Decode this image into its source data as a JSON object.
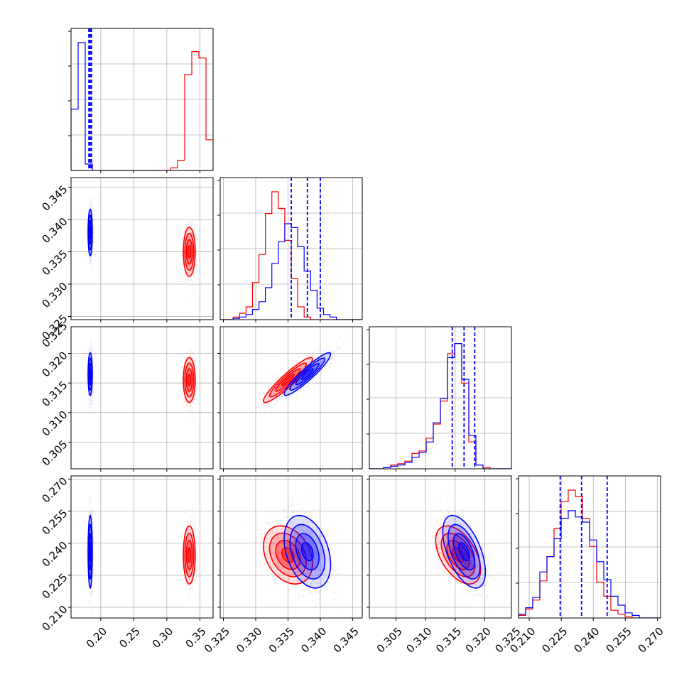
{
  "chart_data": {
    "type": "corner",
    "colors": {
      "series_a": "#0000ff",
      "series_b": "#ff0000"
    },
    "grid": true,
    "series": [
      {
        "color": "blue",
        "means": [
          0.184,
          0.338,
          0.3165,
          0.236
        ],
        "sds": [
          0.0016,
          0.0018,
          0.0018,
          0.0085
        ],
        "quantile_lines": [
          [
            0.182,
            0.184,
            0.186
          ],
          [
            0.3355,
            0.338,
            0.34
          ],
          [
            0.3145,
            0.3165,
            0.3183
          ],
          [
            0.2245,
            0.2345,
            0.2465
          ]
        ]
      },
      {
        "color": "red",
        "means": [
          0.334,
          0.335,
          0.3155,
          0.2345
        ],
        "sds": [
          0.0045,
          0.0019,
          0.0019,
          0.0068
        ],
        "quantile_lines": null
      }
    ],
    "axes": [
      {
        "range": [
          0.155,
          0.37
        ],
        "ticks": [
          0.2,
          0.25,
          0.3,
          0.35
        ],
        "tick_labels": [
          "0.20",
          "0.25",
          "0.30",
          "0.35"
        ]
      },
      {
        "range": [
          0.3245,
          0.3465
        ],
        "ticks": [
          0.325,
          0.33,
          0.335,
          0.34,
          0.345
        ],
        "tick_labels": [
          "0.325",
          "0.330",
          "0.335",
          "0.340",
          "0.345"
        ]
      },
      {
        "range": [
          0.3005,
          0.3245
        ],
        "ticks": [
          0.305,
          0.31,
          0.315,
          0.32,
          0.325
        ],
        "tick_labels": [
          "0.305",
          "0.310",
          "0.315",
          "0.320",
          "0.325"
        ]
      },
      {
        "range": [
          0.205,
          0.2715
        ],
        "ticks": [
          0.21,
          0.225,
          0.24,
          0.255,
          0.27
        ],
        "tick_labels": [
          "0.210",
          "0.225",
          "0.240",
          "0.255",
          "0.270"
        ]
      }
    ],
    "histograms": [
      {
        "bins": [
          0.155,
          0.37,
          20
        ],
        "blue": [
          0.48,
          1.0,
          0.05,
          0,
          0,
          0,
          0,
          0,
          0,
          0,
          0,
          0,
          0,
          0,
          0,
          0,
          0,
          0,
          0,
          0
        ],
        "red": [
          0,
          0,
          0,
          0,
          0,
          0,
          0,
          0,
          0,
          0,
          0,
          0,
          0,
          0,
          0.02,
          0.08,
          0.75,
          0.93,
          0.88,
          0.24
        ]
      },
      {
        "bins": [
          0.3245,
          0.3465,
          22
        ],
        "blue": [
          0.0,
          0.0,
          0.01,
          0.02,
          0.04,
          0.08,
          0.14,
          0.25,
          0.44,
          0.61,
          0.75,
          0.72,
          0.57,
          0.38,
          0.23,
          0.09,
          0.04,
          0.02,
          0.0,
          0.0,
          0.0,
          0.0
        ],
        "red": [
          0.0,
          0.0,
          0.02,
          0.05,
          0.1,
          0.29,
          0.51,
          0.83,
          1.0,
          0.87,
          0.62,
          0.32,
          0.1,
          0.02,
          0.0,
          0.0,
          0.0,
          0.0,
          0.0,
          0.0,
          0.0,
          0.0
        ]
      },
      {
        "bins": [
          0.3005,
          0.3245,
          20
        ],
        "blue": [
          0.0,
          0.0,
          0.01,
          0.02,
          0.03,
          0.05,
          0.09,
          0.13,
          0.21,
          0.36,
          0.55,
          0.87,
          0.98,
          0.7,
          0.26,
          0.03,
          0.0,
          0.0,
          0.0,
          0.0
        ],
        "red": [
          0.0,
          0.0,
          0.01,
          0.03,
          0.04,
          0.06,
          0.12,
          0.14,
          0.24,
          0.35,
          0.53,
          0.9,
          0.98,
          0.67,
          0.21,
          0.03,
          0.01,
          0.0,
          0.0,
          0.0
        ]
      },
      {
        "bins": [
          0.205,
          0.2715,
          20
        ],
        "blue": [
          0.03,
          0.08,
          0.16,
          0.36,
          0.48,
          0.62,
          0.78,
          0.84,
          0.79,
          0.75,
          0.61,
          0.44,
          0.3,
          0.17,
          0.1,
          0.04,
          0.02,
          0.0,
          0.0,
          0.0
        ],
        "red": [
          0.02,
          0.07,
          0.14,
          0.29,
          0.48,
          0.7,
          0.91,
          1.0,
          0.95,
          0.78,
          0.56,
          0.28,
          0.17,
          0.06,
          0.03,
          0.01,
          0.0,
          0.0,
          0.0,
          0.0
        ]
      }
    ],
    "correlations": {
      "1_0": {
        "blue": 0.0,
        "red": 0.0
      },
      "2_0": {
        "blue": 0.0,
        "red": 0.0
      },
      "2_1": {
        "blue": 0.93,
        "red": 0.93
      },
      "3_0": {
        "blue": 0.0,
        "red": 0.0
      },
      "3_1": {
        "blue": -0.35,
        "red": -0.3
      },
      "3_2": {
        "blue": -0.55,
        "red": -0.5
      }
    },
    "xlabel": "",
    "ylabel": ""
  }
}
